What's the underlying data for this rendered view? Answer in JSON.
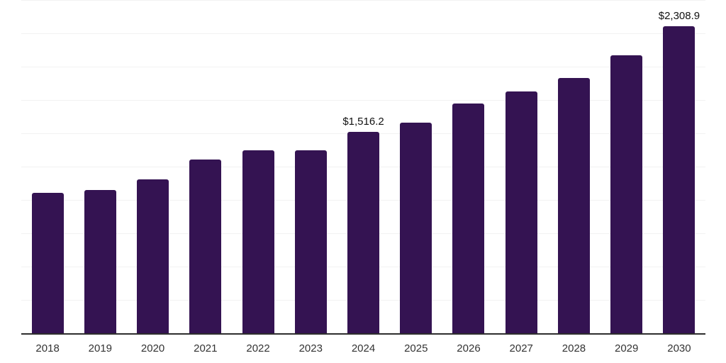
{
  "chart_data": {
    "type": "bar",
    "title": "",
    "xlabel": "",
    "ylabel": "",
    "categories": [
      "2018",
      "2019",
      "2020",
      "2021",
      "2022",
      "2023",
      "2024",
      "2025",
      "2026",
      "2027",
      "2028",
      "2029",
      "2030"
    ],
    "values": [
      1060,
      1080,
      1160,
      1310,
      1380,
      1376,
      1516.2,
      1586,
      1727,
      1820,
      1921,
      2092,
      2308.9
    ],
    "data_labels": {
      "2024": "$1,516.2",
      "2030": "$2,308.9"
    },
    "ylim": [
      0,
      2500
    ],
    "gridline_interval": 250,
    "grid": "horizontal",
    "legend": "none",
    "colors": {
      "bar": "#341352",
      "data_label": "#111111",
      "tick_label": "#333333",
      "axis_line": "#2e2e2e",
      "gridline": "#f2f2f2",
      "background": "#ffffff"
    }
  }
}
